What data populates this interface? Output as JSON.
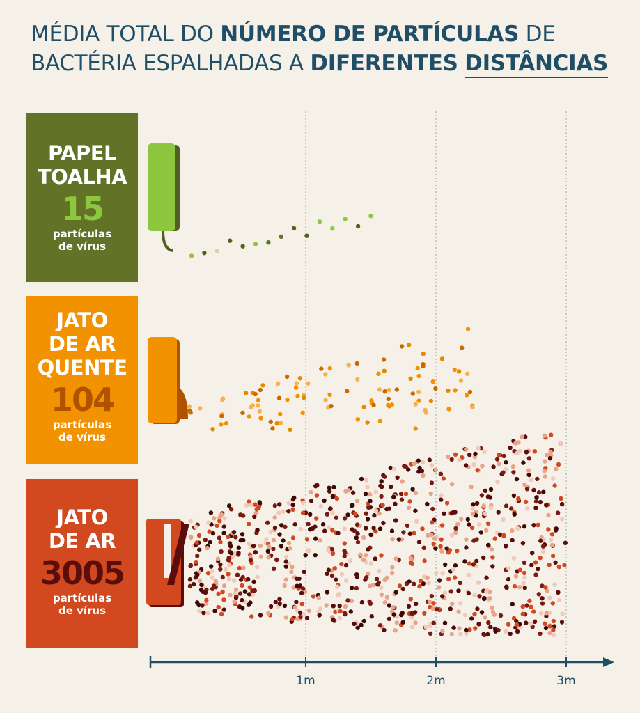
{
  "title": {
    "p1": "MÉDIA TOTAL DO ",
    "b1": "NÚMERO DE PARTÍCULAS",
    "p2": " DE BACTÉRIA ESPALHADAS A ",
    "b2": "DIFERENTES",
    "p3": " ",
    "b3": "DISTÂNCIAS"
  },
  "panels": [
    {
      "name": "PAPEL\nTOALHA",
      "count": "15",
      "unit": "partículas\nde vírus"
    },
    {
      "name": "JATO\nDE AR\nQUENTE",
      "count": "104",
      "unit": "partículas\nde vírus"
    },
    {
      "name": "JATO\nDE AR",
      "count": "3005",
      "unit": "partículas\nde vírus"
    }
  ],
  "colors": {
    "background": "#f5f0e8",
    "title": "#1f4e66",
    "paper_towel": "#627327",
    "paper_towel_accent": "#8dc63f",
    "warm_air": "#f39200",
    "warm_air_accent": "#b05300",
    "jet_air": "#d2481f",
    "jet_air_accent": "#5a0d0a"
  },
  "chart_data": {
    "type": "scatter",
    "x_unit": "m",
    "xlim": [
      0,
      3.4
    ],
    "x_ticks": [
      "1m",
      "2m",
      "3m"
    ],
    "x_tick_values": [
      1,
      2,
      3
    ],
    "grid": "vertical dotted lines at 1m, 2m, 3m",
    "series": [
      {
        "name": "PAPEL TOALHA",
        "count": 15,
        "max_distance_m": 1.5,
        "palette": [
          "#627327",
          "#8dc63f",
          "#cfd9a8",
          "#4f6020"
        ]
      },
      {
        "name": "JATO DE AR QUENTE",
        "count": 104,
        "max_distance_m": 2.3,
        "palette": [
          "#e58a00",
          "#f39200",
          "#c96a00",
          "#f7b04a"
        ]
      },
      {
        "name": "JATO DE AR",
        "count": 3005,
        "max_distance_m": 3.0,
        "palette": [
          "#5a0d0a",
          "#7a1a12",
          "#d2481f",
          "#e8a388",
          "#f0c9b8",
          "#3d0906"
        ]
      }
    ]
  }
}
